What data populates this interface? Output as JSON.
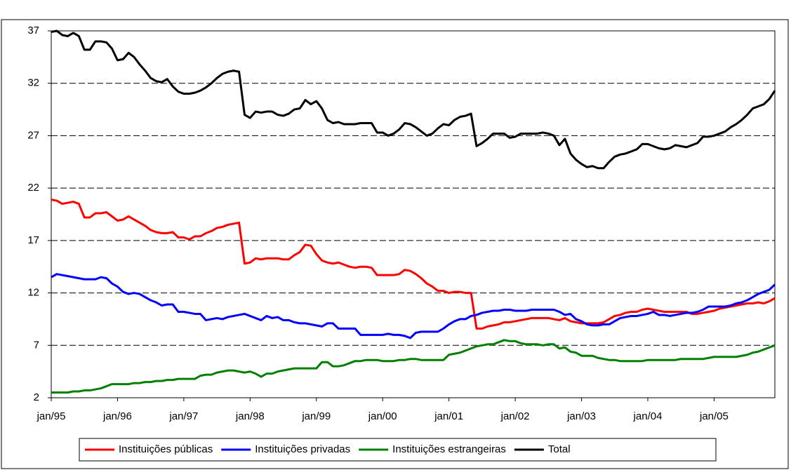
{
  "chart_data": {
    "type": "line",
    "categories": [
      "jan/95",
      null,
      null,
      null,
      null,
      null,
      null,
      null,
      null,
      null,
      null,
      null,
      "jan/96",
      null,
      null,
      null,
      null,
      null,
      null,
      null,
      null,
      null,
      null,
      null,
      "jan/97",
      null,
      null,
      null,
      null,
      null,
      null,
      null,
      null,
      null,
      null,
      null,
      "jan/98",
      null,
      null,
      null,
      null,
      null,
      null,
      null,
      null,
      null,
      null,
      null,
      "jan/99",
      null,
      null,
      null,
      null,
      null,
      null,
      null,
      null,
      null,
      null,
      null,
      "jan/00",
      null,
      null,
      null,
      null,
      null,
      null,
      null,
      null,
      null,
      null,
      null,
      "jan/01",
      null,
      null,
      null,
      null,
      null,
      null,
      null,
      null,
      null,
      null,
      null,
      "jan/02",
      null,
      null,
      null,
      null,
      null,
      null,
      null,
      null,
      null,
      null,
      null,
      "jan/03",
      null,
      null,
      null,
      null,
      null,
      null,
      null,
      null,
      null,
      null,
      null,
      "jan/04",
      null,
      null,
      null,
      null,
      null,
      null,
      null,
      null,
      null,
      null,
      null,
      "jan/05",
      null,
      null,
      null,
      null,
      null,
      null,
      null,
      null,
      null,
      null,
      null
    ],
    "ylim": [
      2,
      37
    ],
    "yticks": [
      2,
      7,
      12,
      17,
      22,
      27,
      32,
      37
    ],
    "grid": true,
    "legend": "bottom",
    "series": [
      {
        "name": "Instituições públicas",
        "color": "#ff0000",
        "values": [
          20.9,
          20.8,
          20.5,
          20.6,
          20.7,
          20.5,
          19.2,
          19.2,
          19.6,
          19.6,
          19.7,
          19.3,
          18.9,
          19.0,
          19.3,
          19.0,
          18.7,
          18.4,
          18.0,
          17.8,
          17.7,
          17.7,
          17.8,
          17.3,
          17.3,
          17.1,
          17.4,
          17.4,
          17.7,
          17.9,
          18.2,
          18.3,
          18.5,
          18.6,
          18.7,
          14.8,
          14.9,
          15.3,
          15.2,
          15.3,
          15.3,
          15.3,
          15.2,
          15.2,
          15.6,
          15.9,
          16.6,
          16.5,
          15.7,
          15.1,
          14.9,
          14.8,
          14.9,
          14.7,
          14.5,
          14.4,
          14.5,
          14.5,
          14.4,
          13.7,
          13.7,
          13.7,
          13.7,
          13.8,
          14.2,
          14.1,
          13.8,
          13.4,
          12.9,
          12.6,
          12.2,
          12.2,
          12.0,
          12.1,
          12.1,
          12.0,
          12.0,
          8.6,
          8.6,
          8.8,
          8.9,
          9.0,
          9.2,
          9.2,
          9.3,
          9.4,
          9.5,
          9.6,
          9.6,
          9.6,
          9.6,
          9.5,
          9.4,
          9.6,
          9.3,
          9.2,
          9.1,
          9.1,
          9.1,
          9.1,
          9.2,
          9.5,
          9.8,
          9.9,
          10.1,
          10.2,
          10.2,
          10.4,
          10.5,
          10.4,
          10.3,
          10.2,
          10.2,
          10.2,
          10.2,
          10.2,
          10.0,
          10.0,
          10.1,
          10.2,
          10.3,
          10.5,
          10.6,
          10.7,
          10.8,
          10.9,
          11.0,
          11.0,
          11.1,
          11.0,
          11.2,
          11.5
        ]
      },
      {
        "name": "Instituições privadas",
        "color": "#0000ff",
        "values": [
          13.5,
          13.8,
          13.7,
          13.6,
          13.5,
          13.4,
          13.3,
          13.3,
          13.3,
          13.5,
          13.4,
          12.9,
          12.6,
          12.1,
          11.9,
          12.0,
          11.9,
          11.6,
          11.3,
          11.1,
          10.8,
          10.9,
          10.9,
          10.2,
          10.2,
          10.1,
          10.0,
          10.0,
          9.4,
          9.5,
          9.6,
          9.5,
          9.7,
          9.8,
          9.9,
          10.0,
          9.8,
          9.6,
          9.4,
          9.8,
          9.6,
          9.7,
          9.4,
          9.4,
          9.2,
          9.1,
          9.1,
          9.0,
          8.9,
          8.8,
          9.1,
          9.1,
          8.6,
          8.6,
          8.6,
          8.6,
          8.0,
          8.0,
          8.0,
          8.0,
          8.0,
          8.1,
          8.0,
          8.0,
          7.9,
          7.7,
          8.2,
          8.3,
          8.3,
          8.3,
          8.3,
          8.6,
          9.0,
          9.3,
          9.5,
          9.5,
          9.8,
          9.9,
          10.1,
          10.2,
          10.3,
          10.3,
          10.4,
          10.4,
          10.3,
          10.3,
          10.3,
          10.4,
          10.4,
          10.4,
          10.4,
          10.4,
          10.2,
          9.9,
          10.0,
          9.5,
          9.3,
          9.0,
          8.9,
          8.9,
          9.0,
          9.0,
          9.3,
          9.6,
          9.7,
          9.8,
          9.8,
          9.9,
          10.0,
          10.2,
          9.9,
          9.9,
          9.8,
          9.9,
          10.0,
          10.1,
          10.1,
          10.2,
          10.4,
          10.7,
          10.7,
          10.7,
          10.7,
          10.8,
          11.0,
          11.1,
          11.3,
          11.6,
          11.9,
          12.1,
          12.3,
          12.8
        ]
      },
      {
        "name": "Instituições estrangeiras",
        "color": "#008000",
        "values": [
          2.5,
          2.5,
          2.5,
          2.5,
          2.6,
          2.6,
          2.7,
          2.7,
          2.8,
          2.9,
          3.1,
          3.3,
          3.3,
          3.3,
          3.3,
          3.4,
          3.4,
          3.5,
          3.5,
          3.6,
          3.6,
          3.7,
          3.7,
          3.8,
          3.8,
          3.8,
          3.8,
          4.1,
          4.2,
          4.2,
          4.4,
          4.5,
          4.6,
          4.6,
          4.5,
          4.4,
          4.5,
          4.3,
          4.0,
          4.3,
          4.3,
          4.5,
          4.6,
          4.7,
          4.8,
          4.8,
          4.8,
          4.8,
          4.8,
          5.4,
          5.4,
          5.0,
          5.0,
          5.1,
          5.3,
          5.5,
          5.5,
          5.6,
          5.6,
          5.6,
          5.5,
          5.5,
          5.5,
          5.6,
          5.6,
          5.7,
          5.7,
          5.6,
          5.6,
          5.6,
          5.6,
          5.6,
          6.1,
          6.2,
          6.3,
          6.5,
          6.7,
          6.9,
          7.0,
          7.1,
          7.1,
          7.3,
          7.5,
          7.4,
          7.4,
          7.2,
          7.1,
          7.1,
          7.1,
          7.0,
          7.1,
          7.1,
          6.7,
          6.8,
          6.4,
          6.3,
          6.0,
          6.0,
          6.0,
          5.8,
          5.7,
          5.6,
          5.6,
          5.5,
          5.5,
          5.5,
          5.5,
          5.5,
          5.6,
          5.6,
          5.6,
          5.6,
          5.6,
          5.6,
          5.7,
          5.7,
          5.7,
          5.7,
          5.7,
          5.8,
          5.9,
          5.9,
          5.9,
          5.9,
          5.9,
          6.0,
          6.1,
          6.3,
          6.4,
          6.6,
          6.8,
          7.0
        ]
      },
      {
        "name": "Total",
        "color": "#000000",
        "values": [
          36.9,
          37.0,
          36.6,
          36.5,
          36.8,
          36.5,
          35.2,
          35.2,
          36.0,
          36.0,
          35.9,
          35.3,
          34.2,
          34.3,
          34.9,
          34.5,
          33.8,
          33.2,
          32.5,
          32.2,
          32.1,
          32.4,
          31.7,
          31.2,
          31.0,
          31.0,
          31.1,
          31.3,
          31.6,
          32.0,
          32.5,
          32.9,
          33.1,
          33.2,
          33.1,
          29.0,
          28.7,
          29.3,
          29.2,
          29.3,
          29.3,
          29.0,
          28.9,
          29.1,
          29.5,
          29.6,
          30.4,
          30.0,
          30.3,
          29.6,
          28.5,
          28.2,
          28.3,
          28.1,
          28.1,
          28.1,
          28.2,
          28.2,
          28.2,
          27.3,
          27.3,
          27.0,
          27.2,
          27.6,
          28.2,
          28.1,
          27.8,
          27.4,
          27.0,
          27.2,
          27.7,
          28.1,
          28.0,
          28.5,
          28.8,
          28.9,
          29.1,
          26.0,
          26.3,
          26.7,
          27.2,
          27.2,
          27.2,
          26.8,
          26.9,
          27.2,
          27.2,
          27.2,
          27.2,
          27.3,
          27.2,
          27.0,
          26.1,
          26.7,
          25.3,
          24.7,
          24.3,
          24.0,
          24.1,
          23.9,
          23.9,
          24.5,
          25.0,
          25.2,
          25.3,
          25.5,
          25.7,
          26.2,
          26.2,
          26.0,
          25.8,
          25.7,
          25.8,
          26.1,
          26.0,
          25.9,
          26.1,
          26.3,
          26.9,
          26.9,
          27.0,
          27.2,
          27.4,
          27.8,
          28.1,
          28.5,
          29.0,
          29.6,
          29.8,
          30.0,
          30.5,
          31.3
        ]
      }
    ]
  }
}
